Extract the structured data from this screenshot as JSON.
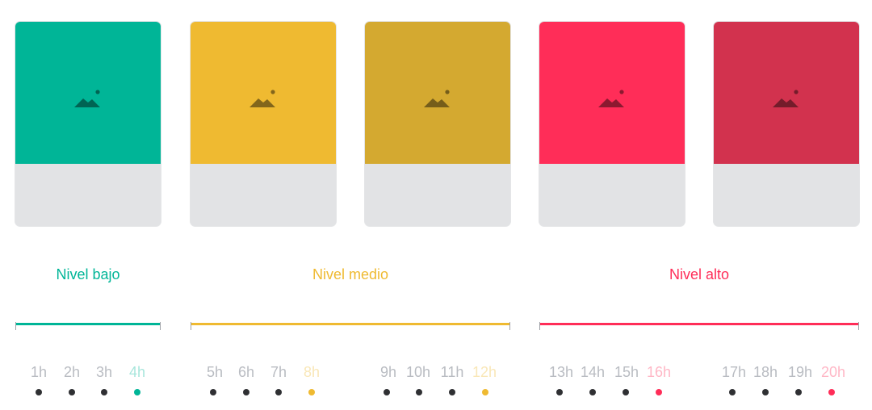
{
  "colors": {
    "low": "#00b597",
    "medium": "#efba31",
    "medium_dark": "#d4a930",
    "high": "#ff2d58",
    "high_dark": "#d2324e",
    "card_bottom": "#e2e3e5",
    "dot": "#2f3033",
    "hour_text": "#b9bcc2"
  },
  "cards": [
    {
      "color": "#00b597",
      "icon": "image-placeholder-icon"
    },
    {
      "color": "#efba31",
      "icon": "image-placeholder-icon"
    },
    {
      "color": "#d4a930",
      "icon": "image-placeholder-icon"
    },
    {
      "color": "#ff2d58",
      "icon": "image-placeholder-icon"
    },
    {
      "color": "#d2324e",
      "icon": "image-placeholder-icon"
    }
  ],
  "levels": [
    {
      "label": "Nivel bajo",
      "color": "#00b597"
    },
    {
      "label": "Nivel medio",
      "color": "#efba31"
    },
    {
      "label": "Nivel alto",
      "color": "#ff2d58"
    }
  ],
  "hours": [
    {
      "text": "1h",
      "highlight": false,
      "level": 0
    },
    {
      "text": "2h",
      "highlight": false,
      "level": 0
    },
    {
      "text": "3h",
      "highlight": false,
      "level": 0
    },
    {
      "text": "4h",
      "highlight": true,
      "level": 0
    },
    {
      "text": "5h",
      "highlight": false,
      "level": 1
    },
    {
      "text": "6h",
      "highlight": false,
      "level": 1
    },
    {
      "text": "7h",
      "highlight": false,
      "level": 1
    },
    {
      "text": "8h",
      "highlight": true,
      "level": 1
    },
    {
      "text": "9h",
      "highlight": false,
      "level": 1
    },
    {
      "text": "10h",
      "highlight": false,
      "level": 1
    },
    {
      "text": "11h",
      "highlight": false,
      "level": 1
    },
    {
      "text": "12h",
      "highlight": true,
      "level": 1
    },
    {
      "text": "13h",
      "highlight": false,
      "level": 2
    },
    {
      "text": "14h",
      "highlight": false,
      "level": 2
    },
    {
      "text": "15h",
      "highlight": false,
      "level": 2
    },
    {
      "text": "16h",
      "highlight": true,
      "level": 2
    },
    {
      "text": "17h",
      "highlight": false,
      "level": 2
    },
    {
      "text": "18h",
      "highlight": false,
      "level": 2
    },
    {
      "text": "19h",
      "highlight": false,
      "level": 2
    },
    {
      "text": "20h",
      "highlight": true,
      "level": 2
    }
  ]
}
